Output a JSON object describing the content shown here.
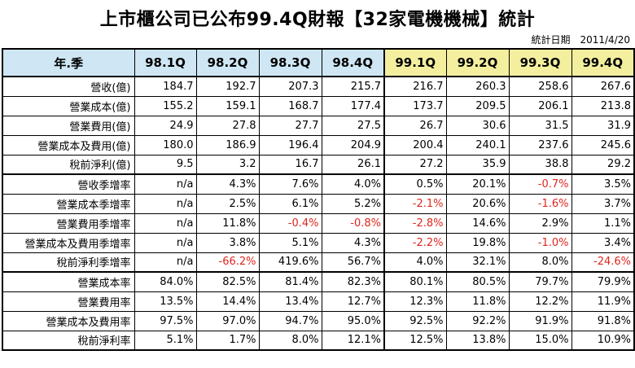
{
  "title": "上市櫃公司已公布99.4Q財報【32家電機機械】統計",
  "subtitle": "統計日期　2011/4/20",
  "colors": {
    "header_blue": "#cfe6f4",
    "header_yellow": "#f3ef9e",
    "negative_red": "#e0251d"
  },
  "table": {
    "corner_label": "年.季",
    "columns": [
      "98.1Q",
      "98.2Q",
      "98.3Q",
      "98.4Q",
      "99.1Q",
      "99.2Q",
      "99.3Q",
      "99.4Q"
    ],
    "rows": [
      {
        "label": "營收(億)",
        "values": [
          "184.7",
          "192.7",
          "207.3",
          "215.7",
          "216.7",
          "260.3",
          "258.6",
          "267.6"
        ]
      },
      {
        "label": "營業成本(億)",
        "values": [
          "155.2",
          "159.1",
          "168.7",
          "177.4",
          "173.7",
          "209.5",
          "206.1",
          "213.8"
        ]
      },
      {
        "label": "營業費用(億)",
        "values": [
          "24.9",
          "27.8",
          "27.7",
          "27.5",
          "26.7",
          "30.6",
          "31.5",
          "31.9"
        ]
      },
      {
        "label": "營業成本及費用(億)",
        "values": [
          "180.0",
          "186.9",
          "196.4",
          "204.9",
          "200.4",
          "240.1",
          "237.6",
          "245.6"
        ]
      },
      {
        "label": "稅前淨利(億)",
        "values": [
          "9.5",
          "3.2",
          "16.7",
          "26.1",
          "27.2",
          "35.9",
          "38.8",
          "29.2"
        ]
      },
      {
        "label": "營收季增率",
        "values": [
          "n/a",
          "4.3%",
          "7.6%",
          "4.0%",
          "0.5%",
          "20.1%",
          "-0.7%",
          "3.5%"
        ]
      },
      {
        "label": "營業成本季增率",
        "values": [
          "n/a",
          "2.5%",
          "6.1%",
          "5.2%",
          "-2.1%",
          "20.6%",
          "-1.6%",
          "3.7%"
        ]
      },
      {
        "label": "營業費用季增率",
        "values": [
          "n/a",
          "11.8%",
          "-0.4%",
          "-0.8%",
          "-2.8%",
          "14.6%",
          "2.9%",
          "1.1%"
        ]
      },
      {
        "label": "營業成本及費用季增率",
        "values": [
          "n/a",
          "3.8%",
          "5.1%",
          "4.3%",
          "-2.2%",
          "19.8%",
          "-1.0%",
          "3.4%"
        ]
      },
      {
        "label": "稅前淨利季增率",
        "values": [
          "n/a",
          "-66.2%",
          "419.6%",
          "56.7%",
          "4.0%",
          "32.1%",
          "8.0%",
          "-24.6%"
        ]
      },
      {
        "label": "營業成本率",
        "values": [
          "84.0%",
          "82.5%",
          "81.4%",
          "82.3%",
          "80.1%",
          "80.5%",
          "79.7%",
          "79.9%"
        ]
      },
      {
        "label": "營業費用率",
        "values": [
          "13.5%",
          "14.4%",
          "13.4%",
          "12.7%",
          "12.3%",
          "11.8%",
          "12.2%",
          "11.9%"
        ]
      },
      {
        "label": "營業成本及費用率",
        "values": [
          "97.5%",
          "97.0%",
          "94.7%",
          "95.0%",
          "92.5%",
          "92.2%",
          "91.9%",
          "91.8%"
        ]
      },
      {
        "label": "稅前淨利率",
        "values": [
          "5.1%",
          "1.7%",
          "8.0%",
          "12.1%",
          "12.5%",
          "13.8%",
          "15.0%",
          "10.9%"
        ]
      }
    ]
  }
}
